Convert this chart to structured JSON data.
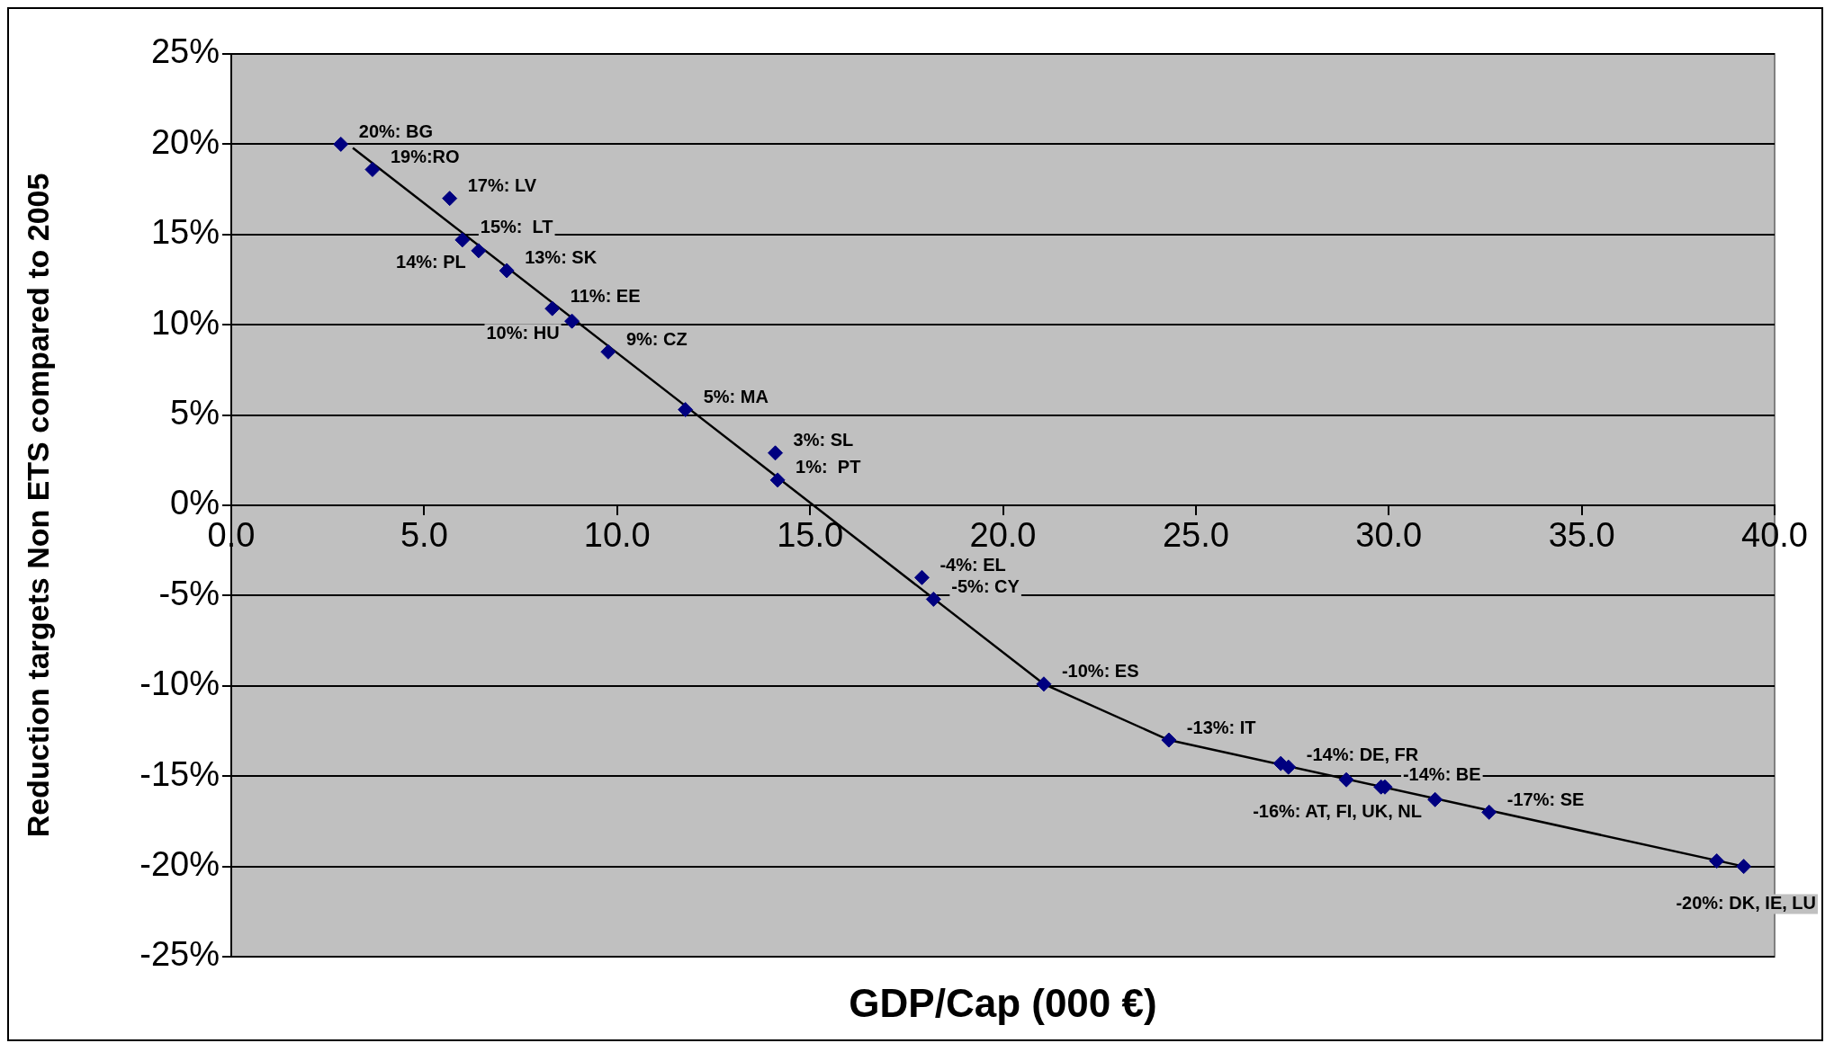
{
  "chart_data": {
    "type": "scatter",
    "xlabel": "GDP/Cap (000 €)",
    "ylabel": "Reduction targets Non ETS compared to 2005",
    "xlim": [
      0,
      40
    ],
    "xticks": [
      {
        "value": 0,
        "label": "0.0"
      },
      {
        "value": 5,
        "label": "5.0"
      },
      {
        "value": 10,
        "label": "10.0"
      },
      {
        "value": 15,
        "label": "15.0"
      },
      {
        "value": 20,
        "label": "20.0"
      },
      {
        "value": 25,
        "label": "25.0"
      },
      {
        "value": 30,
        "label": "30.0"
      },
      {
        "value": 35,
        "label": "35.0"
      },
      {
        "value": 40,
        "label": "40.0"
      }
    ],
    "ylim": [
      -25,
      25
    ],
    "yticks": [
      {
        "value": -25,
        "label": "-25%"
      },
      {
        "value": -20,
        "label": "-20%"
      },
      {
        "value": -15,
        "label": "-15%"
      },
      {
        "value": -10,
        "label": "-10%"
      },
      {
        "value": -5,
        "label": "-5%"
      },
      {
        "value": 0,
        "label": "0%"
      },
      {
        "value": 5,
        "label": "5%"
      },
      {
        "value": 10,
        "label": "10%"
      },
      {
        "value": 15,
        "label": "15%"
      },
      {
        "value": 20,
        "label": "20%"
      },
      {
        "value": 25,
        "label": "25%"
      }
    ],
    "grid": "y",
    "legend": false,
    "series": [
      {
        "type": "scatter",
        "color": "#000080",
        "marker": "diamond",
        "x": [
          2.84,
          3.66,
          5.66,
          5.99,
          6.41,
          7.14,
          8.32,
          8.83,
          9.77,
          11.77,
          14.1,
          14.16,
          17.9,
          18.2,
          21.06,
          24.3,
          27.2,
          27.4,
          28.9,
          29.8,
          29.9,
          31.2,
          32.6,
          38.5,
          39.2
        ],
        "values": [
          20,
          18.6,
          17,
          14.7,
          14.1,
          13,
          10.9,
          10.2,
          8.5,
          5.3,
          2.9,
          1.4,
          -4,
          -5.2,
          -9.9,
          -13,
          -14.3,
          -14.5,
          -15.2,
          -15.6,
          -15.6,
          -16.3,
          -17,
          -19.7,
          -20
        ]
      },
      {
        "type": "line",
        "color": "#000000",
        "marker": "none",
        "line_style": "solid",
        "x": [
          3.15,
          21.06,
          24.3,
          39.2
        ],
        "values": [
          19.8,
          -9.9,
          -13,
          -20
        ]
      }
    ],
    "annotations": [
      {
        "text": "20%: BG",
        "x": 2.84,
        "y": 20
      },
      {
        "text": "19%:RO",
        "x": 3.66,
        "y": 18.6
      },
      {
        "text": "17%: LV",
        "x": 5.66,
        "y": 17
      },
      {
        "text": "15%:  LT",
        "x": 5.99,
        "y": 14.7
      },
      {
        "text": "14%: PL",
        "x": 6.41,
        "y": 14.1
      },
      {
        "text": "13%: SK",
        "x": 7.14,
        "y": 13
      },
      {
        "text": "11%: EE",
        "x": 8.32,
        "y": 10.9
      },
      {
        "text": "10%: HU",
        "x": 8.83,
        "y": 10.2
      },
      {
        "text": "9%: CZ",
        "x": 9.77,
        "y": 8.5
      },
      {
        "text": "5%: MA",
        "x": 11.77,
        "y": 5.3
      },
      {
        "text": "3%: SL",
        "x": 14.1,
        "y": 2.9
      },
      {
        "text": "1%:  PT",
        "x": 14.16,
        "y": 1.4
      },
      {
        "text": "-4%: EL",
        "x": 17.9,
        "y": -4
      },
      {
        "text": "-5%: CY",
        "x": 18.2,
        "y": -5.2
      },
      {
        "text": "-10%: ES",
        "x": 21.06,
        "y": -9.9
      },
      {
        "text": "-13%: IT",
        "x": 24.3,
        "y": -13
      },
      {
        "text": "-14%: DE, FR",
        "x": 27.4,
        "y": -14.5
      },
      {
        "text": "-14%: BE",
        "x": 29.9,
        "y": -15.6
      },
      {
        "text": "-16%: AT, FI, UK, NL",
        "x": 31.2,
        "y": -16.3
      },
      {
        "text": "-17%: SE",
        "x": 32.6,
        "y": -17
      },
      {
        "text": "-20%: DK, IE, LU",
        "x": 39.2,
        "y": -20
      }
    ]
  }
}
